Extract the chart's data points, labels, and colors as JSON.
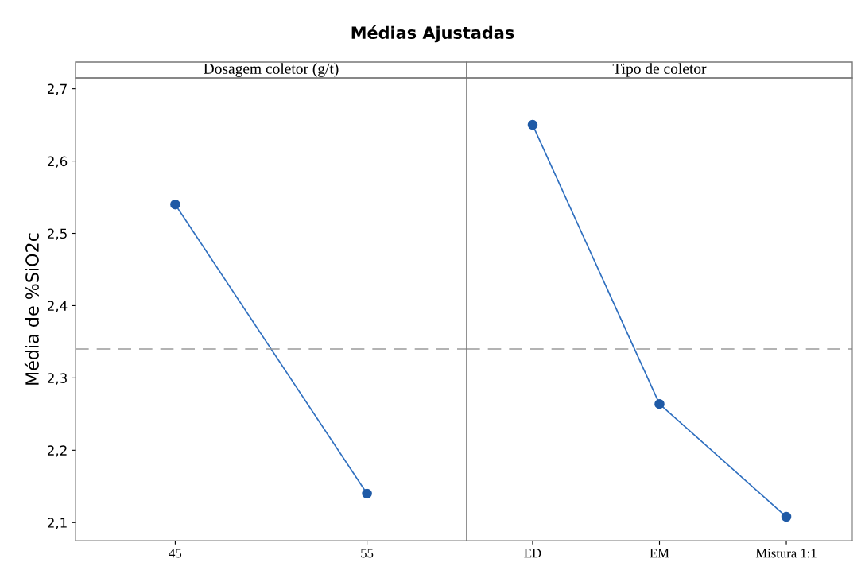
{
  "chart_data": [
    {
      "type": "line",
      "title": "Médias Ajustadas",
      "subtitle": "Dosagem coletor (g/t)",
      "ylabel": "Média de %SiO2c",
      "categories": [
        "45",
        "55"
      ],
      "series": [
        {
          "color": "#2f6fbf",
          "values": [
            2.54,
            2.14
          ]
        }
      ],
      "marker": "circle",
      "line_style": "solid",
      "grid": false,
      "legend": false,
      "ylim": [
        2.075,
        2.715
      ],
      "yticks": [
        {
          "value": 2.1,
          "label": "2,1"
        },
        {
          "value": 2.2,
          "label": "2,2"
        },
        {
          "value": 2.3,
          "label": "2,3"
        },
        {
          "value": 2.4,
          "label": "2,4"
        },
        {
          "value": 2.5,
          "label": "2,5"
        },
        {
          "value": 2.6,
          "label": "2,6"
        },
        {
          "value": 2.7,
          "label": "2,7"
        }
      ],
      "ref_lines": [
        {
          "axis": "y",
          "value": 2.34,
          "color": "#9a9a9a",
          "line_style": "dashed"
        }
      ]
    },
    {
      "type": "line",
      "subtitle": "Tipo de coletor",
      "categories": [
        "ED",
        "EM",
        "Mistura 1:1"
      ],
      "series": [
        {
          "color": "#2f6fbf",
          "values": [
            2.65,
            2.264,
            2.108
          ]
        }
      ],
      "marker": "circle",
      "line_style": "solid",
      "grid": false,
      "legend": false,
      "tick_labels": "x",
      "ylim": [
        2.075,
        2.715
      ],
      "ref_lines": [
        {
          "axis": "y",
          "value": 2.34,
          "color": "#9a9a9a",
          "line_style": "dashed"
        }
      ]
    }
  ]
}
